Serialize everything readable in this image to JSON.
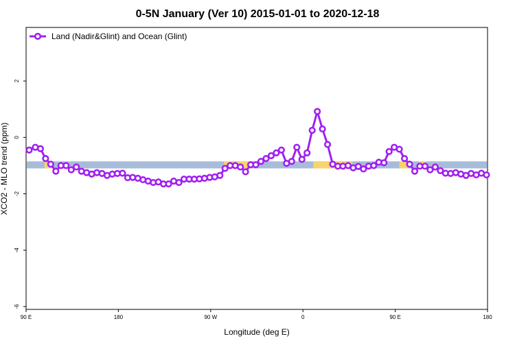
{
  "chart_data": {
    "type": "line",
    "title": "0-5N January (Ver 10)   2015-01-01 to 2020-12-18",
    "xlabel": "Longitude (deg E)",
    "ylabel": "XCO2 - MLO trend (ppm)",
    "x_ticks": [
      "90 E",
      "180",
      "90 W",
      "0",
      "90 E",
      "180"
    ],
    "y_ticks": [
      "2",
      "0",
      "-2",
      "-4",
      "-6"
    ],
    "y_tick_values": [
      2,
      0,
      -2,
      -4,
      -6
    ],
    "xlim": [
      0,
      450
    ],
    "ylim": [
      -6.1,
      3.9
    ],
    "grid": false,
    "legend_position": "top-left",
    "series": [
      {
        "name": "Land (Nadir&Glint) and Ocean (Glint)",
        "color": "#a020f0",
        "x": [
          3,
          9,
          14,
          19,
          24,
          29,
          34,
          39,
          44,
          49,
          54,
          59,
          64,
          69,
          74,
          79,
          84,
          89,
          94,
          99,
          104,
          109,
          114,
          119,
          124,
          129,
          134,
          139,
          144,
          149,
          154,
          159,
          164,
          169,
          174,
          179,
          184,
          189,
          194,
          199,
          204,
          209,
          214,
          219,
          224,
          229,
          234,
          239,
          244,
          249,
          254,
          259,
          264,
          269,
          274,
          279,
          284,
          289,
          294,
          299,
          304,
          309,
          314,
          319,
          324,
          329,
          334,
          339,
          344,
          349,
          354,
          359,
          364,
          369,
          374,
          379,
          384,
          389,
          394,
          399,
          404,
          409,
          414,
          419,
          424,
          429,
          434,
          439,
          444,
          449
        ],
        "y": [
          -0.45,
          -0.35,
          -0.4,
          -0.75,
          -0.95,
          -1.2,
          -1.0,
          -1.0,
          -1.15,
          -1.05,
          -1.2,
          -1.25,
          -1.3,
          -1.25,
          -1.28,
          -1.35,
          -1.3,
          -1.28,
          -1.27,
          -1.43,
          -1.42,
          -1.45,
          -1.5,
          -1.55,
          -1.6,
          -1.58,
          -1.65,
          -1.65,
          -1.55,
          -1.6,
          -1.48,
          -1.48,
          -1.48,
          -1.47,
          -1.45,
          -1.42,
          -1.4,
          -1.35,
          -1.1,
          -1.0,
          -1.0,
          -1.05,
          -1.22,
          -0.97,
          -0.97,
          -0.85,
          -0.75,
          -0.65,
          -0.55,
          -0.45,
          -0.92,
          -0.85,
          -0.35,
          -0.78,
          -0.55,
          0.25,
          0.92,
          0.3,
          -0.25,
          -0.95,
          -1.02,
          -1.02,
          -1.0,
          -1.08,
          -1.03,
          -1.12,
          -1.02,
          -1.0,
          -0.88,
          -0.9,
          -0.5,
          -0.35,
          -0.42,
          -0.75,
          -0.95,
          -1.2,
          -1.02,
          -1.02,
          -1.15,
          -1.05,
          -1.18,
          -1.27,
          -1.28,
          -1.25,
          -1.3,
          -1.35,
          -1.28,
          -1.33,
          -1.27,
          -1.33
        ]
      }
    ],
    "surface_band": {
      "y_range": [
        -1.1,
        -0.85
      ],
      "ocean_color": "#a7bcd9",
      "land_color": "#f7d46c",
      "land_segments": [
        [
          18,
          26
        ],
        [
          193,
          220
        ],
        [
          280,
          318
        ],
        [
          364,
          372
        ],
        [
          383,
          390
        ]
      ]
    }
  }
}
